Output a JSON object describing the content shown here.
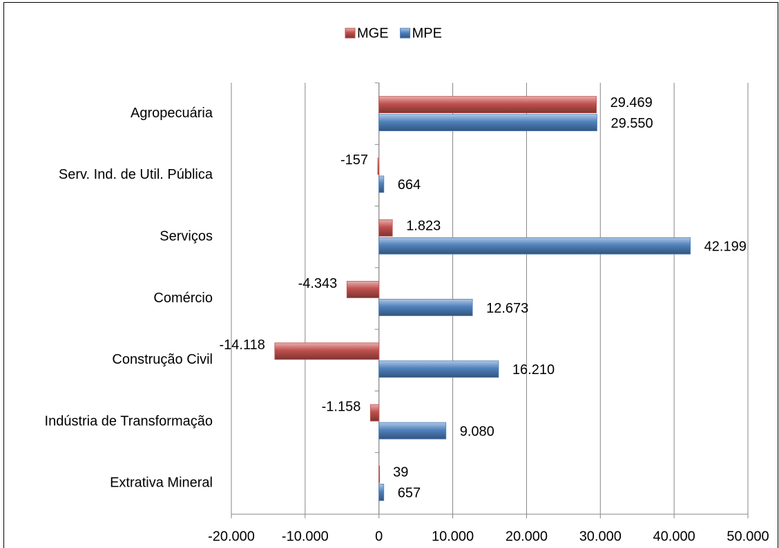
{
  "chart_data": {
    "type": "hbar",
    "categories": [
      "Agropecuária",
      "Serv. Ind. de Util. Pública",
      "Serviços",
      "Comércio",
      "Construção Civil",
      "Indústria de Transformação",
      "Extrativa Mineral"
    ],
    "series": [
      {
        "name": "MGE",
        "color": "#c0504d",
        "values": [
          29469,
          -157,
          1823,
          -4343,
          -14118,
          -1158,
          39
        ],
        "value_labels": [
          "29.469",
          "-157",
          "1.823",
          "-4.343",
          "-14.118",
          "-1.158",
          "39"
        ]
      },
      {
        "name": "MPE",
        "color": "#4f81bd",
        "values": [
          29550,
          664,
          42199,
          12673,
          16210,
          9080,
          657
        ],
        "value_labels": [
          "29.550",
          "664",
          "42.199",
          "12.673",
          "16.210",
          "9.080",
          "657"
        ]
      }
    ],
    "xlim": [
      -20000,
      50000
    ],
    "xticks": [
      {
        "value": -20000,
        "label": "-20.000"
      },
      {
        "value": -10000,
        "label": "-10.000"
      },
      0,
      {
        "value": 10000,
        "label": "10.000"
      },
      {
        "value": 20000,
        "label": "20.000"
      },
      {
        "value": 30000,
        "label": "30.000"
      },
      {
        "value": 40000,
        "label": "40.000"
      },
      {
        "value": 50000,
        "label": "50.000"
      }
    ],
    "grid": true,
    "legend": "top",
    "negative_color": "#ff0000"
  }
}
